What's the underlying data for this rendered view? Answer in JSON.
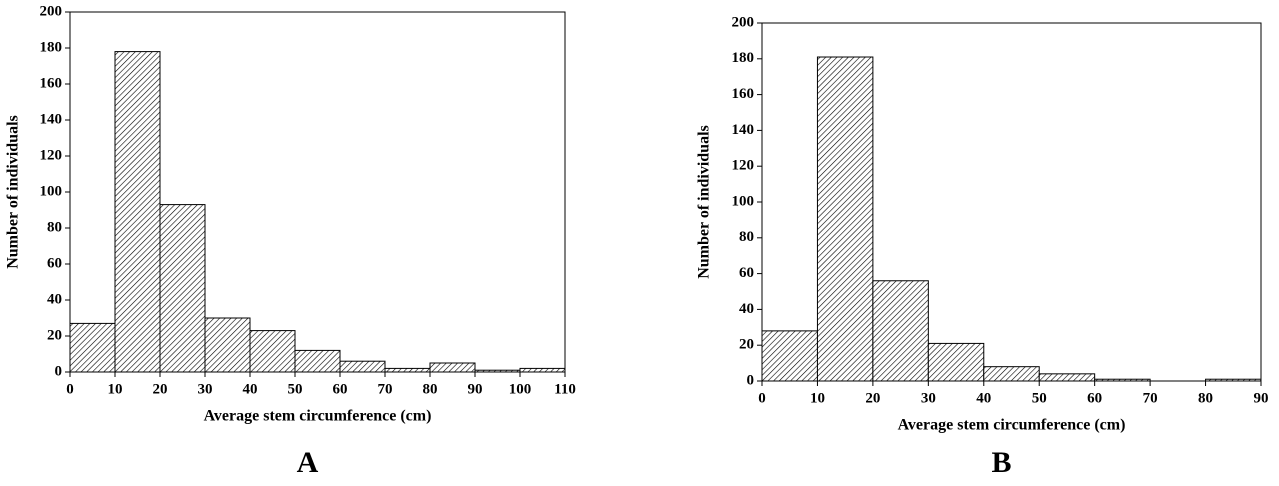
{
  "chart_data": [
    {
      "type": "histogram",
      "label": "A",
      "x_label": "Average stem circumference  (cm)",
      "y_label": "Number of individuals",
      "bins": [
        0,
        10,
        20,
        30,
        40,
        50,
        60,
        70,
        80,
        90,
        100,
        110
      ],
      "values": [
        27,
        178,
        93,
        30,
        23,
        12,
        6,
        2,
        5,
        1,
        2
      ],
      "xlim": [
        0,
        110
      ],
      "xticks": [
        0,
        10,
        20,
        30,
        40,
        50,
        60,
        70,
        80,
        90,
        100,
        110
      ],
      "ylim": [
        0,
        200
      ],
      "yticks": [
        0,
        20,
        40,
        60,
        80,
        100,
        120,
        140,
        160,
        180,
        200
      ],
      "color": "#000000"
    },
    {
      "type": "histogram",
      "label": "B",
      "x_label": "Average stem circumference  (cm)",
      "y_label": "Number of individuals",
      "bins": [
        0,
        10,
        20,
        30,
        40,
        50,
        60,
        70,
        80,
        90
      ],
      "values": [
        28,
        181,
        56,
        21,
        8,
        4,
        1,
        0,
        1
      ],
      "xlim": [
        0,
        90
      ],
      "xticks": [
        0,
        10,
        20,
        30,
        40,
        50,
        60,
        70,
        80,
        90
      ],
      "ylim": [
        0,
        200
      ],
      "yticks": [
        0,
        20,
        40,
        60,
        80,
        100,
        120,
        140,
        160,
        180,
        200
      ],
      "color": "#000000"
    }
  ]
}
